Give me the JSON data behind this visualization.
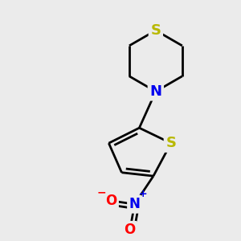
{
  "background_color": "#ebebeb",
  "atom_colors": {
    "S": "#b8b800",
    "N": "#0000ee",
    "O": "#ff0000",
    "C": "#000000"
  },
  "bond_color": "#000000",
  "bond_width": 2.0,
  "figsize": [
    3.0,
    3.0
  ],
  "dpi": 100,
  "xlim": [
    0,
    10
  ],
  "ylim": [
    0,
    10
  ]
}
